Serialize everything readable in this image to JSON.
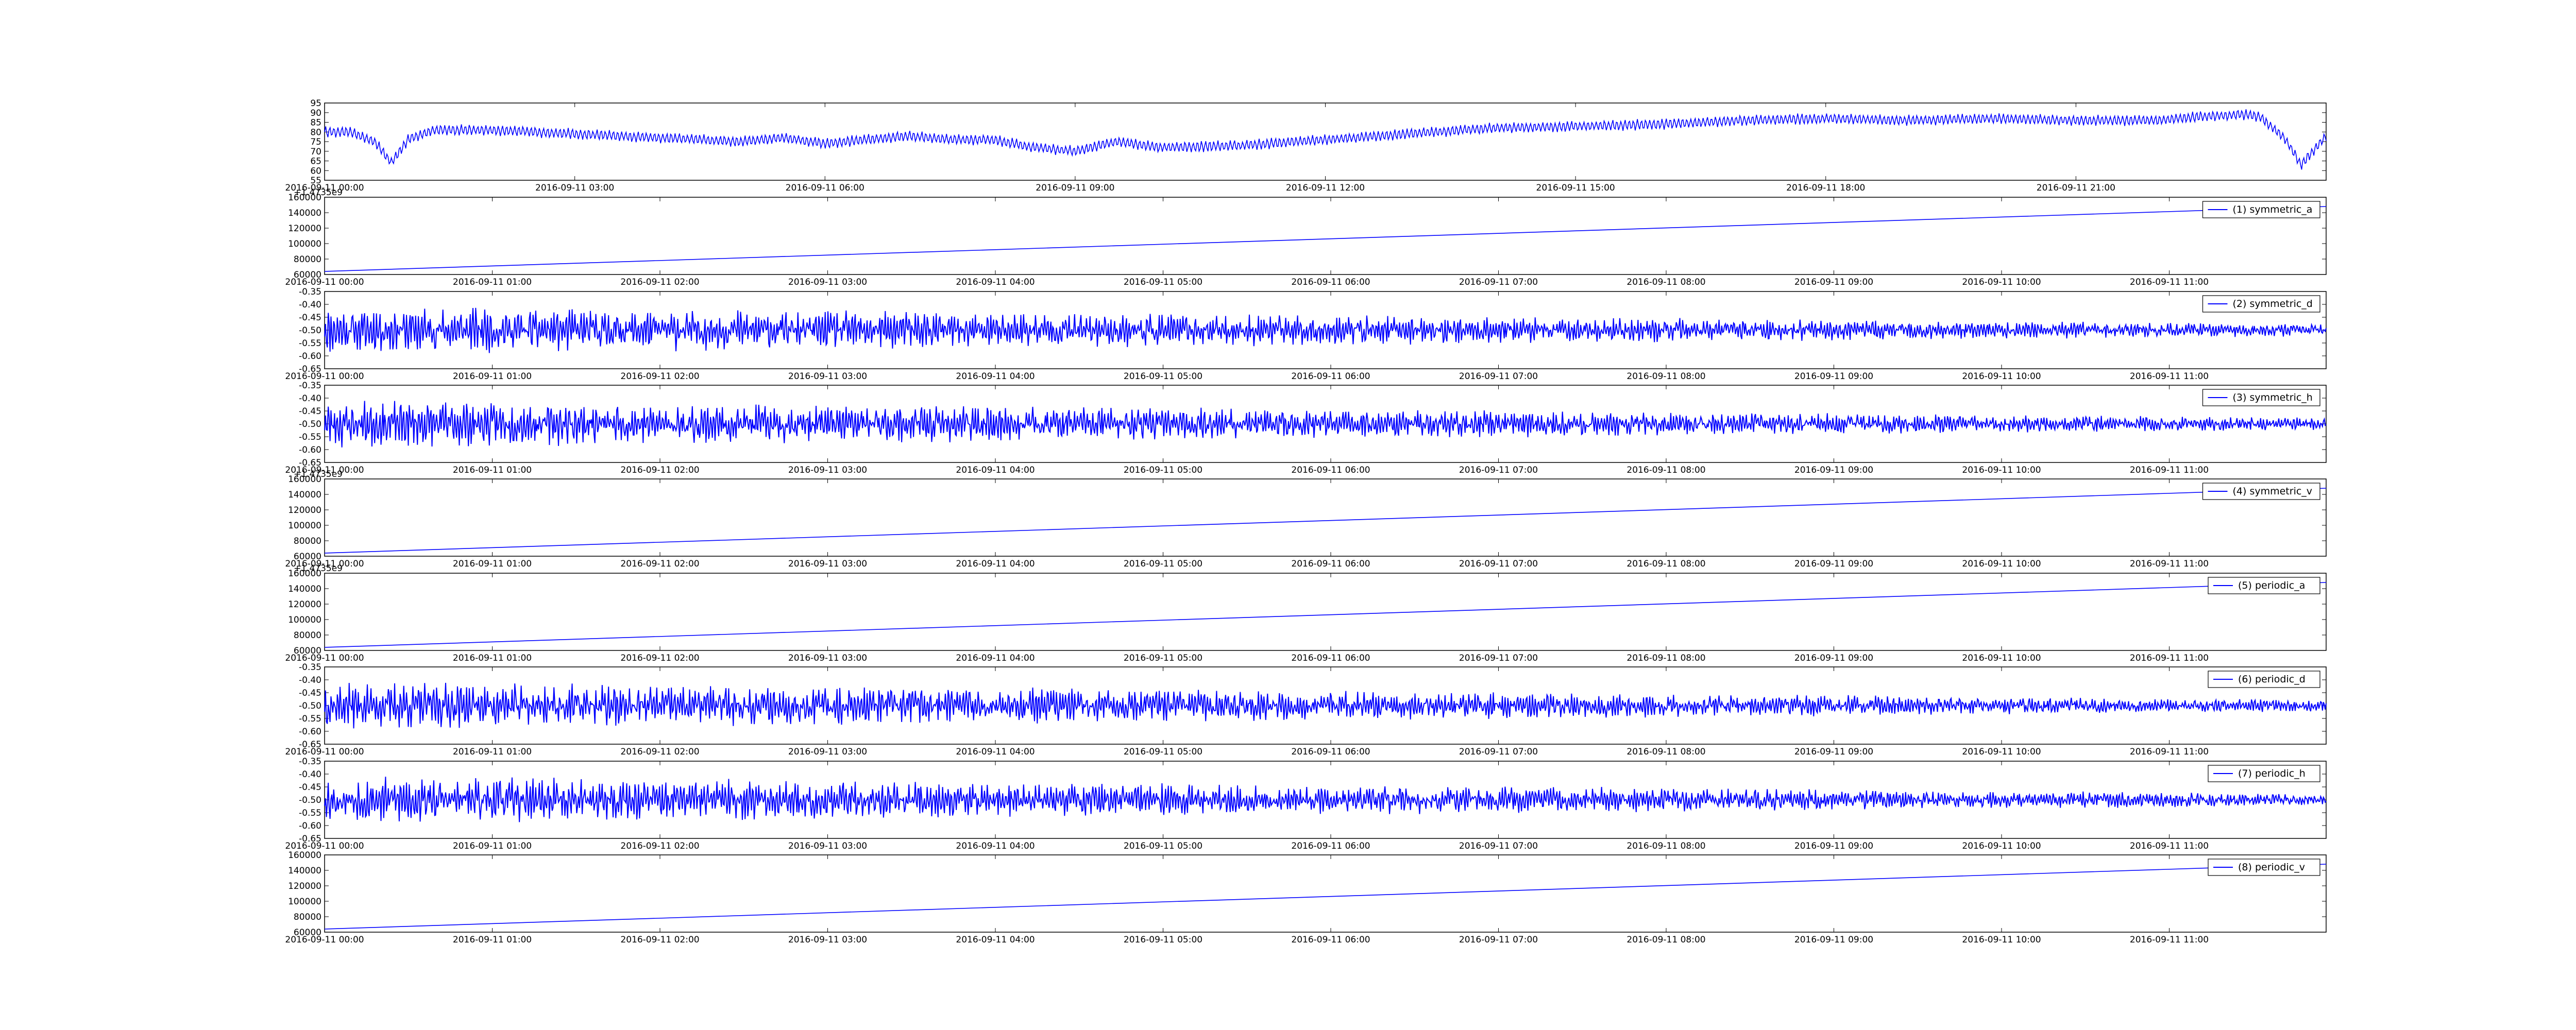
{
  "chart_data": [
    {
      "type": "line",
      "id": "raw",
      "x_ticks": [
        "2016-09-11 00:00",
        "2016-09-11 03:00",
        "2016-09-11 06:00",
        "2016-09-11 09:00",
        "2016-09-11 12:00",
        "2016-09-11 15:00",
        "2016-09-11 18:00",
        "2016-09-11 21:00"
      ],
      "y_ticks": [
        "55",
        "60",
        "65",
        "70",
        "75",
        "80",
        "85",
        "90",
        "95"
      ],
      "ylim": [
        55,
        95
      ],
      "x_range_hours": [
        0,
        24
      ],
      "offset_label": "",
      "legend": "",
      "trend": {
        "x_hours": [
          0,
          0.3,
          0.6,
          0.8,
          1.0,
          1.3,
          2,
          3,
          4,
          5,
          5.5,
          6,
          7,
          7.5,
          8,
          8.5,
          9,
          9.5,
          10,
          11,
          12,
          13,
          14,
          15,
          16,
          17,
          18,
          19,
          20,
          21,
          22,
          22.5,
          23,
          23.2,
          23.5,
          23.7,
          24
        ],
        "y": [
          80,
          80,
          75,
          64,
          76,
          81,
          81,
          79,
          77,
          75,
          77,
          74,
          78,
          76,
          76,
          72,
          70,
          75,
          72,
          73,
          76,
          79,
          82,
          83,
          84,
          86,
          87,
          86,
          87,
          86,
          86,
          88,
          89,
          88,
          77,
          63,
          78
        ]
      },
      "oscillation_amplitude": 3
    },
    {
      "type": "line",
      "id": "symmetric_a",
      "x_ticks": [
        "2016-09-11 00:00",
        "2016-09-11 01:00",
        "2016-09-11 02:00",
        "2016-09-11 03:00",
        "2016-09-11 04:00",
        "2016-09-11 05:00",
        "2016-09-11 06:00",
        "2016-09-11 07:00",
        "2016-09-11 08:00",
        "2016-09-11 09:00",
        "2016-09-11 10:00",
        "2016-09-11 11:00"
      ],
      "y_ticks": [
        "60000",
        "80000",
        "100000",
        "120000",
        "140000",
        "160000"
      ],
      "ylim": [
        60000,
        160000
      ],
      "offset_label": "+1.4735e9",
      "legend": "(1) symmetric_a",
      "linear": {
        "start": 64000,
        "end": 148000
      }
    },
    {
      "type": "line",
      "id": "symmetric_d",
      "x_ticks": [
        "2016-09-11 00:00",
        "2016-09-11 01:00",
        "2016-09-11 02:00",
        "2016-09-11 03:00",
        "2016-09-11 04:00",
        "2016-09-11 05:00",
        "2016-09-11 06:00",
        "2016-09-11 07:00",
        "2016-09-11 08:00",
        "2016-09-11 09:00",
        "2016-09-11 10:00",
        "2016-09-11 11:00"
      ],
      "y_ticks": [
        "-0.65",
        "-0.60",
        "-0.55",
        "-0.50",
        "-0.45",
        "-0.40",
        "-0.35"
      ],
      "ylim": [
        -0.65,
        -0.35
      ],
      "offset_label": "",
      "legend": "(2) symmetric_d",
      "noise": {
        "center": -0.5,
        "amp_start": 0.08,
        "amp_end": 0.02,
        "seed": 11
      }
    },
    {
      "type": "line",
      "id": "symmetric_h",
      "x_ticks": [
        "2016-09-11 00:00",
        "2016-09-11 01:00",
        "2016-09-11 02:00",
        "2016-09-11 03:00",
        "2016-09-11 04:00",
        "2016-09-11 05:00",
        "2016-09-11 06:00",
        "2016-09-11 07:00",
        "2016-09-11 08:00",
        "2016-09-11 09:00",
        "2016-09-11 10:00",
        "2016-09-11 11:00"
      ],
      "y_ticks": [
        "-0.65",
        "-0.60",
        "-0.55",
        "-0.50",
        "-0.45",
        "-0.40",
        "-0.35"
      ],
      "ylim": [
        -0.65,
        -0.35
      ],
      "offset_label": "",
      "legend": "(3) symmetric_h",
      "noise": {
        "center": -0.5,
        "amp_start": 0.08,
        "amp_end": 0.02,
        "seed": 23
      }
    },
    {
      "type": "line",
      "id": "symmetric_v",
      "x_ticks": [
        "2016-09-11 00:00",
        "2016-09-11 01:00",
        "2016-09-11 02:00",
        "2016-09-11 03:00",
        "2016-09-11 04:00",
        "2016-09-11 05:00",
        "2016-09-11 06:00",
        "2016-09-11 07:00",
        "2016-09-11 08:00",
        "2016-09-11 09:00",
        "2016-09-11 10:00",
        "2016-09-11 11:00"
      ],
      "y_ticks": [
        "60000",
        "80000",
        "100000",
        "120000",
        "140000",
        "160000"
      ],
      "ylim": [
        60000,
        160000
      ],
      "offset_label": "+1.4735e9",
      "legend": "(4) symmetric_v",
      "linear": {
        "start": 64000,
        "end": 148000
      }
    },
    {
      "type": "line",
      "id": "periodic_a",
      "x_ticks": [
        "2016-09-11 00:00",
        "2016-09-11 01:00",
        "2016-09-11 02:00",
        "2016-09-11 03:00",
        "2016-09-11 04:00",
        "2016-09-11 05:00",
        "2016-09-11 06:00",
        "2016-09-11 07:00",
        "2016-09-11 08:00",
        "2016-09-11 09:00",
        "2016-09-11 10:00",
        "2016-09-11 11:00"
      ],
      "y_ticks": [
        "60000",
        "80000",
        "100000",
        "120000",
        "140000",
        "160000"
      ],
      "ylim": [
        60000,
        160000
      ],
      "offset_label": "+1.4735e9",
      "legend": "(5) periodic_a",
      "linear": {
        "start": 64000,
        "end": 148000
      }
    },
    {
      "type": "line",
      "id": "periodic_d",
      "x_ticks": [
        "2016-09-11 00:00",
        "2016-09-11 01:00",
        "2016-09-11 02:00",
        "2016-09-11 03:00",
        "2016-09-11 04:00",
        "2016-09-11 05:00",
        "2016-09-11 06:00",
        "2016-09-11 07:00",
        "2016-09-11 08:00",
        "2016-09-11 09:00",
        "2016-09-11 10:00",
        "2016-09-11 11:00"
      ],
      "y_ticks": [
        "-0.65",
        "-0.60",
        "-0.55",
        "-0.50",
        "-0.45",
        "-0.40",
        "-0.35"
      ],
      "ylim": [
        -0.65,
        -0.35
      ],
      "offset_label": "",
      "legend": "(6) periodic_d",
      "noise": {
        "center": -0.5,
        "amp_start": 0.08,
        "amp_end": 0.02,
        "seed": 37
      }
    },
    {
      "type": "line",
      "id": "periodic_h",
      "x_ticks": [
        "2016-09-11 00:00",
        "2016-09-11 01:00",
        "2016-09-11 02:00",
        "2016-09-11 03:00",
        "2016-09-11 04:00",
        "2016-09-11 05:00",
        "2016-09-11 06:00",
        "2016-09-11 07:00",
        "2016-09-11 08:00",
        "2016-09-11 09:00",
        "2016-09-11 10:00",
        "2016-09-11 11:00"
      ],
      "y_ticks": [
        "-0.65",
        "-0.60",
        "-0.55",
        "-0.50",
        "-0.45",
        "-0.40",
        "-0.35"
      ],
      "ylim": [
        -0.65,
        -0.35
      ],
      "offset_label": "",
      "legend": "(7) periodic_h",
      "noise": {
        "center": -0.5,
        "amp_start": 0.08,
        "amp_end": 0.02,
        "seed": 53
      }
    },
    {
      "type": "line",
      "id": "periodic_v",
      "x_ticks": [
        "2016-09-11 00:00",
        "2016-09-11 01:00",
        "2016-09-11 02:00",
        "2016-09-11 03:00",
        "2016-09-11 04:00",
        "2016-09-11 05:00",
        "2016-09-11 06:00",
        "2016-09-11 07:00",
        "2016-09-11 08:00",
        "2016-09-11 09:00",
        "2016-09-11 10:00",
        "2016-09-11 11:00"
      ],
      "y_ticks": [
        "60000",
        "80000",
        "100000",
        "120000",
        "140000",
        "160000"
      ],
      "ylim": [
        60000,
        160000
      ],
      "offset_label": "",
      "legend": "(8) periodic_v",
      "linear": {
        "start": 64000,
        "end": 148000
      }
    }
  ],
  "colors": {
    "line": "#0000ff",
    "axis": "#000000",
    "background": "#ffffff"
  }
}
